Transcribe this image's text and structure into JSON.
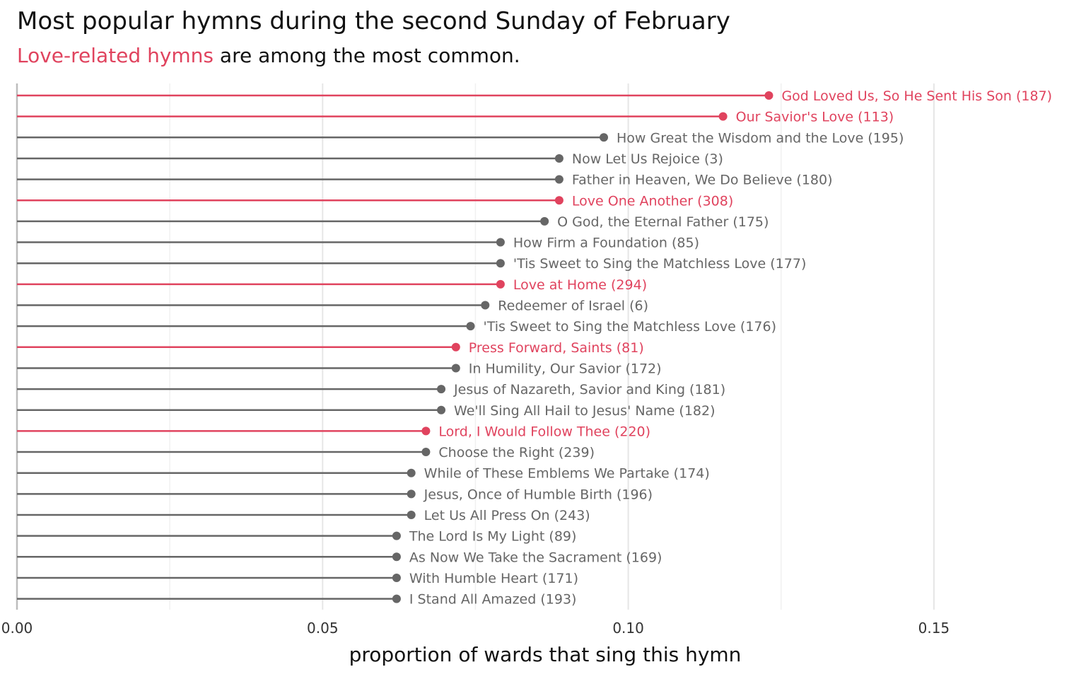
{
  "title": "Most popular hymns during the second Sunday of February",
  "subtitle": {
    "highlight": "Love-related hymns",
    "rest": " are among the most common."
  },
  "colors": {
    "highlight": "#e0435e",
    "default": "#666666",
    "grid": "#e6e6e6",
    "axis": "#bdbdbd"
  },
  "chart_data": {
    "type": "lollipop",
    "orientation": "horizontal",
    "xlabel": "proportion of wards that sing this hymn",
    "xlim": [
      0,
      0.174
    ],
    "xticks": [
      {
        "value": 0.0,
        "label": "0.00"
      },
      {
        "value": 0.05,
        "label": "0.05"
      },
      {
        "value": 0.1,
        "label": "0.10"
      },
      {
        "value": 0.15,
        "label": "0.15"
      }
    ],
    "minor_gridlines": [
      0.025,
      0.075,
      0.125
    ],
    "grid": true,
    "items": [
      {
        "label": "God Loved Us, So He Sent His Son (187)",
        "value": 0.123,
        "love": true
      },
      {
        "label": "Our Savior's Love (113)",
        "value": 0.1155,
        "love": true
      },
      {
        "label": "How Great the Wisdom and the Love (195)",
        "value": 0.096,
        "love": false
      },
      {
        "label": "Now Let Us Rejoice (3)",
        "value": 0.0887,
        "love": false
      },
      {
        "label": "Father in Heaven, We Do Believe (180)",
        "value": 0.0887,
        "love": false
      },
      {
        "label": "Love One Another (308)",
        "value": 0.0887,
        "love": true
      },
      {
        "label": "O God, the Eternal Father (175)",
        "value": 0.0863,
        "love": false
      },
      {
        "label": "How Firm a Foundation (85)",
        "value": 0.0791,
        "love": false
      },
      {
        "label": "'Tis Sweet to Sing the Matchless Love (177)",
        "value": 0.0791,
        "love": false
      },
      {
        "label": "Love at Home (294)",
        "value": 0.0791,
        "love": true
      },
      {
        "label": "Redeemer of Israel (6)",
        "value": 0.0766,
        "love": false
      },
      {
        "label": "'Tis Sweet to Sing the Matchless Love (176)",
        "value": 0.0742,
        "love": false
      },
      {
        "label": "Press Forward, Saints (81)",
        "value": 0.0718,
        "love": true
      },
      {
        "label": "In Humility, Our Savior (172)",
        "value": 0.0718,
        "love": false
      },
      {
        "label": "Jesus of Nazareth, Savior and King (181)",
        "value": 0.0694,
        "love": false
      },
      {
        "label": "We'll Sing All Hail to Jesus' Name (182)",
        "value": 0.0694,
        "love": false
      },
      {
        "label": "Lord, I Would Follow Thee (220)",
        "value": 0.0669,
        "love": true
      },
      {
        "label": "Choose the Right (239)",
        "value": 0.0669,
        "love": false
      },
      {
        "label": "While of These Emblems We Partake (174)",
        "value": 0.0645,
        "love": false
      },
      {
        "label": "Jesus, Once of Humble Birth (196)",
        "value": 0.0645,
        "love": false
      },
      {
        "label": "Let Us All Press On (243)",
        "value": 0.0645,
        "love": false
      },
      {
        "label": "The Lord Is My Light (89)",
        "value": 0.0621,
        "love": false
      },
      {
        "label": "As Now We Take the Sacrament (169)",
        "value": 0.0621,
        "love": false
      },
      {
        "label": "With Humble Heart (171)",
        "value": 0.0621,
        "love": false
      },
      {
        "label": "I Stand All Amazed (193)",
        "value": 0.0621,
        "love": false
      }
    ]
  }
}
